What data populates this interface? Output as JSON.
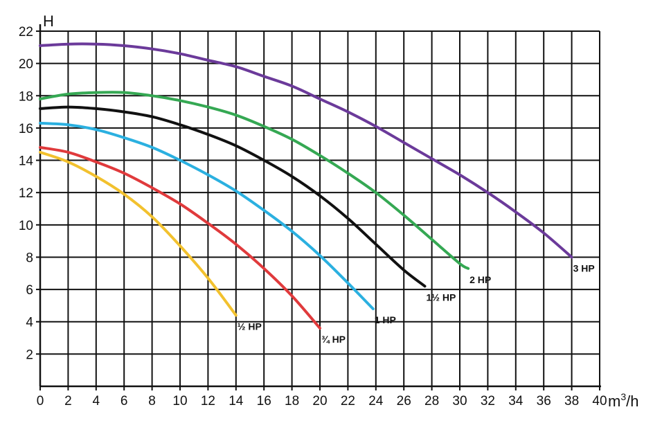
{
  "chart_data": {
    "type": "line",
    "title": "",
    "ylabel": "H",
    "xlabel_prefix": "m",
    "xlabel_sup": "3",
    "xlabel_suffix": "/h",
    "xlim": [
      0,
      40
    ],
    "ylim": [
      0,
      22
    ],
    "x_ticks": [
      0,
      2,
      4,
      6,
      8,
      10,
      12,
      14,
      16,
      18,
      20,
      22,
      24,
      26,
      28,
      30,
      32,
      34,
      36,
      38,
      40
    ],
    "y_ticks": [
      2,
      4,
      6,
      8,
      10,
      12,
      14,
      16,
      18,
      20,
      22
    ],
    "grid": true,
    "series": [
      {
        "name": "½ HP",
        "color": "#f2c12e",
        "points": [
          [
            0,
            14.5
          ],
          [
            2,
            13.9
          ],
          [
            4,
            13.0
          ],
          [
            6,
            11.9
          ],
          [
            8,
            10.5
          ],
          [
            10,
            8.7
          ],
          [
            12,
            6.7
          ],
          [
            14,
            4.4
          ]
        ]
      },
      {
        "name": "¾ HP",
        "color": "#e03a3c",
        "points": [
          [
            0,
            14.8
          ],
          [
            2,
            14.5
          ],
          [
            4,
            13.9
          ],
          [
            6,
            13.2
          ],
          [
            8,
            12.3
          ],
          [
            10,
            11.3
          ],
          [
            12,
            10.1
          ],
          [
            14,
            8.8
          ],
          [
            16,
            7.3
          ],
          [
            18,
            5.6
          ],
          [
            20,
            3.6
          ]
        ]
      },
      {
        "name": "1 HP",
        "color": "#2bb0e0",
        "points": [
          [
            0,
            16.3
          ],
          [
            2,
            16.2
          ],
          [
            4,
            15.9
          ],
          [
            6,
            15.4
          ],
          [
            8,
            14.8
          ],
          [
            10,
            14.0
          ],
          [
            12,
            13.1
          ],
          [
            14,
            12.1
          ],
          [
            16,
            10.9
          ],
          [
            18,
            9.6
          ],
          [
            20,
            8.1
          ],
          [
            22,
            6.4
          ],
          [
            23.8,
            4.8
          ]
        ]
      },
      {
        "name": "1½ HP",
        "color": "#111111",
        "points": [
          [
            0,
            17.2
          ],
          [
            2,
            17.3
          ],
          [
            4,
            17.2
          ],
          [
            6,
            17.0
          ],
          [
            8,
            16.7
          ],
          [
            10,
            16.2
          ],
          [
            12,
            15.6
          ],
          [
            14,
            14.9
          ],
          [
            16,
            14.0
          ],
          [
            18,
            13.0
          ],
          [
            20,
            11.8
          ],
          [
            22,
            10.4
          ],
          [
            24,
            8.8
          ],
          [
            26,
            7.2
          ],
          [
            27.5,
            6.2
          ]
        ]
      },
      {
        "name": "2 HP",
        "color": "#35a853",
        "points": [
          [
            0,
            17.8
          ],
          [
            2,
            18.1
          ],
          [
            4,
            18.2
          ],
          [
            6,
            18.2
          ],
          [
            8,
            18.0
          ],
          [
            10,
            17.7
          ],
          [
            12,
            17.3
          ],
          [
            14,
            16.8
          ],
          [
            16,
            16.1
          ],
          [
            18,
            15.3
          ],
          [
            20,
            14.3
          ],
          [
            22,
            13.2
          ],
          [
            24,
            12.0
          ],
          [
            26,
            10.6
          ],
          [
            28,
            9.1
          ],
          [
            30,
            7.6
          ],
          [
            30.6,
            7.3
          ]
        ]
      },
      {
        "name": "3 HP",
        "color": "#6b3a9a",
        "points": [
          [
            0,
            21.1
          ],
          [
            2,
            21.2
          ],
          [
            4,
            21.2
          ],
          [
            6,
            21.1
          ],
          [
            8,
            20.9
          ],
          [
            10,
            20.6
          ],
          [
            12,
            20.2
          ],
          [
            14,
            19.8
          ],
          [
            16,
            19.2
          ],
          [
            18,
            18.6
          ],
          [
            20,
            17.8
          ],
          [
            22,
            17.0
          ],
          [
            24,
            16.1
          ],
          [
            26,
            15.1
          ],
          [
            28,
            14.1
          ],
          [
            30,
            13.1
          ],
          [
            32,
            12.0
          ],
          [
            34,
            10.8
          ],
          [
            36,
            9.5
          ],
          [
            38,
            8.0
          ]
        ]
      }
    ]
  }
}
